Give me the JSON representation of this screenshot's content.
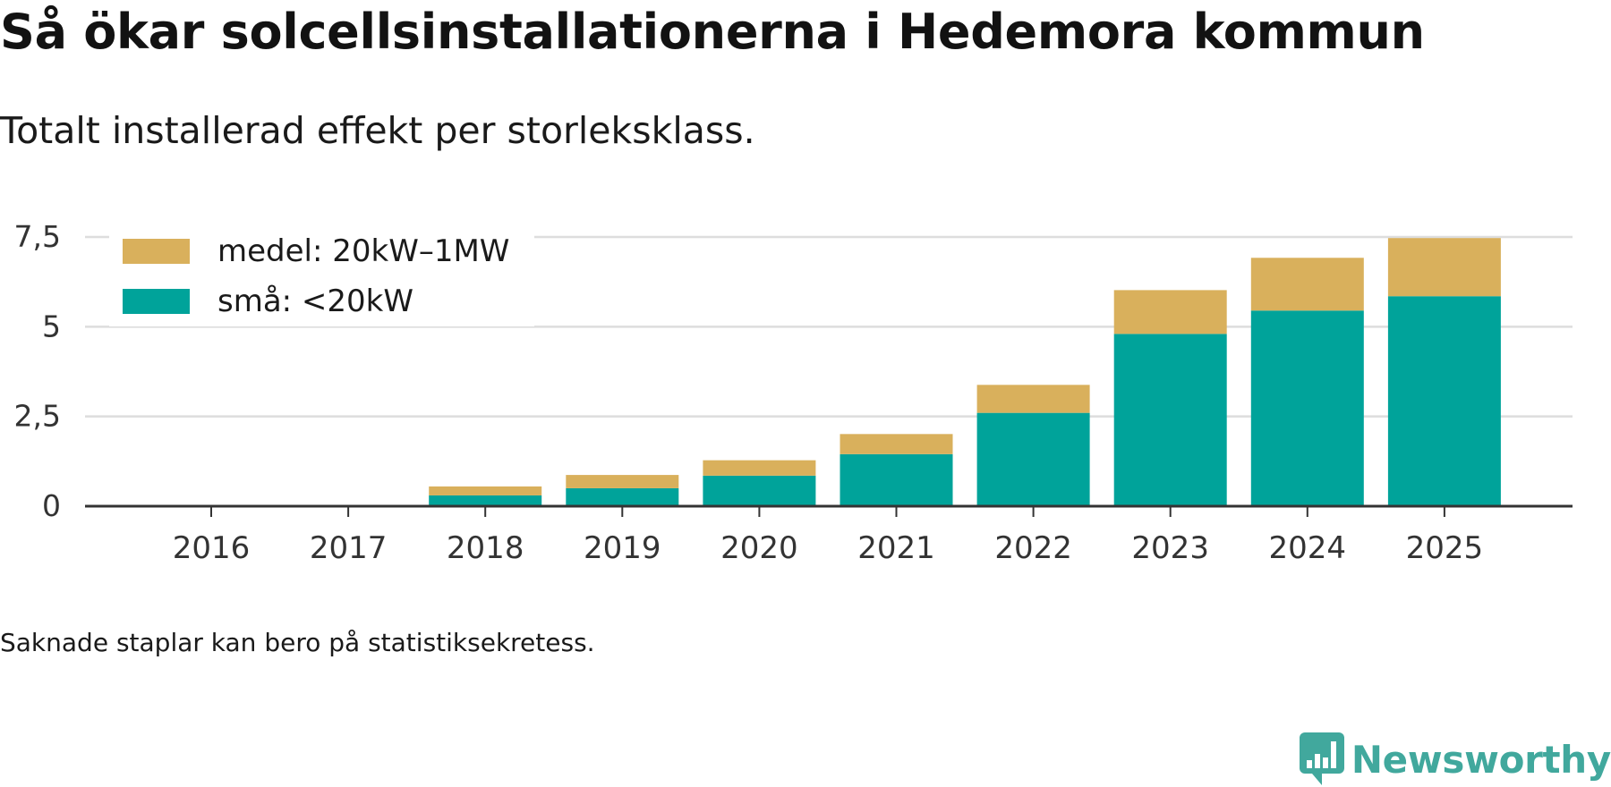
{
  "header": {
    "title": "Så ökar solcellsinstallationerna i Hedemora kommun",
    "subtitle": "Totalt installerad effekt per storleksklass."
  },
  "footer": {
    "note": "Saknade staplar kan bero på statistiksekretess.",
    "brand": "Newsworthy"
  },
  "colors": {
    "small": "#00a39a",
    "medium": "#d9b05c",
    "brand": "#41a89d",
    "grid": "#dddddd",
    "axis": "#333333"
  },
  "chart_data": {
    "type": "bar",
    "stacked": true,
    "categories": [
      "2016",
      "2017",
      "2018",
      "2019",
      "2020",
      "2021",
      "2022",
      "2023",
      "2024",
      "2025"
    ],
    "series": [
      {
        "name": "små: <20kW",
        "color": "#00a39a",
        "values": [
          0,
          0,
          0.3,
          0.5,
          0.85,
          1.45,
          2.6,
          4.8,
          5.45,
          5.85
        ]
      },
      {
        "name": "medel: 20kW–1MW",
        "color": "#d9b05c",
        "values": [
          0,
          0,
          0.25,
          0.37,
          0.43,
          0.56,
          0.78,
          1.22,
          1.47,
          1.62
        ]
      }
    ],
    "yticks": [
      {
        "value": 0,
        "label": "0"
      },
      {
        "value": 2.5,
        "label": "2,5"
      },
      {
        "value": 5,
        "label": "5"
      },
      {
        "value": 7.5,
        "label": "7,5"
      }
    ],
    "ylim": [
      0,
      7.5
    ],
    "legend": [
      {
        "label": "medel: 20kW–1MW",
        "color": "#d9b05c"
      },
      {
        "label": "små: <20kW",
        "color": "#00a39a"
      }
    ],
    "legend_position": "top-left",
    "grid": true,
    "title": "Så ökar solcellsinstallationerna i Hedemora kommun",
    "xlabel": "",
    "ylabel": ""
  }
}
